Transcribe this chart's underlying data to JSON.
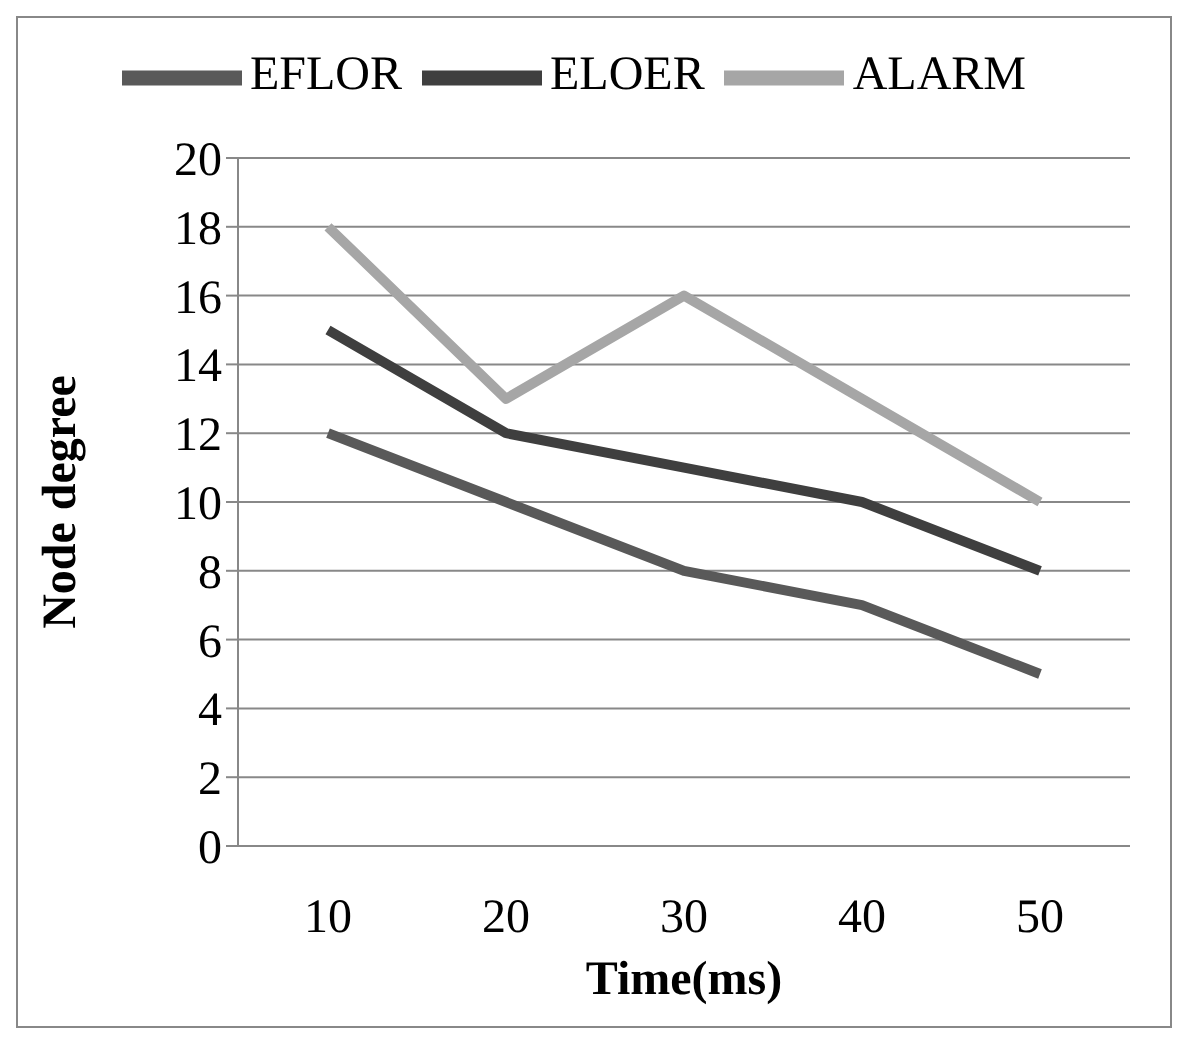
{
  "chart_data": {
    "type": "line",
    "xlabel": "Time(ms)",
    "ylabel": "Node degree",
    "categories": [
      "10",
      "20",
      "30",
      "40",
      "50"
    ],
    "series": [
      {
        "name": "EFLOR",
        "color": "#595959",
        "values": [
          12,
          10,
          8,
          7,
          5
        ]
      },
      {
        "name": "ELOER",
        "color": "#3f3f3f",
        "values": [
          15,
          12,
          11,
          10,
          8
        ]
      },
      {
        "name": "ALARM",
        "color": "#a6a6a6",
        "values": [
          18,
          13,
          16,
          13,
          10
        ]
      }
    ],
    "ylim": [
      0,
      20
    ],
    "yticks": [
      0,
      2,
      4,
      6,
      8,
      10,
      12,
      14,
      16,
      18,
      20
    ],
    "grid": "y",
    "legend": "top",
    "marker": "none",
    "line_style": "solid"
  }
}
